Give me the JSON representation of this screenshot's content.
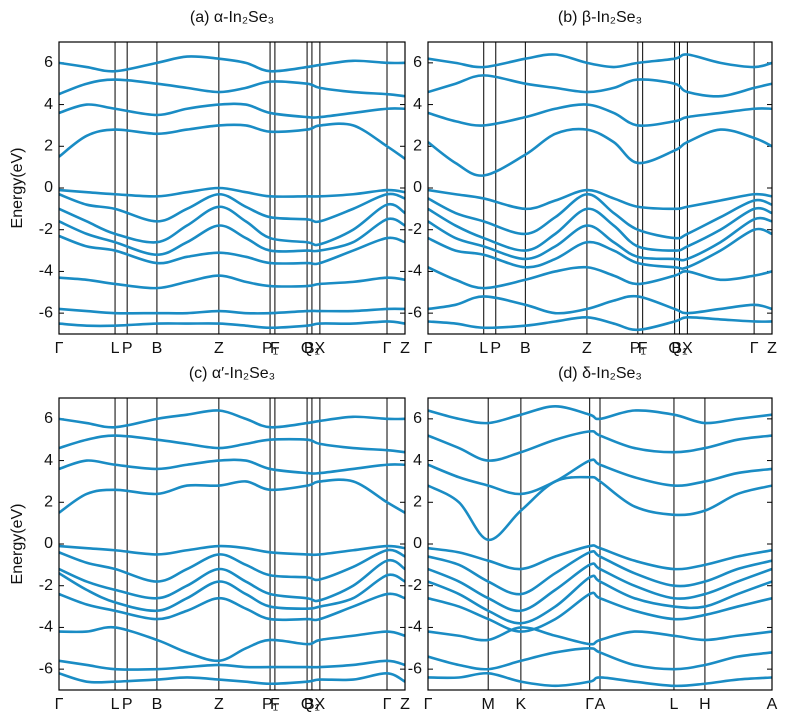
{
  "chart_data": [
    {
      "type": "line",
      "title": "(a) α-In₂Se₃",
      "ylabel": "Energy(eV)",
      "color": "#1a8cc4",
      "xgrid": true,
      "xlim": [
        0,
        1
      ],
      "ylim": [
        -7,
        7
      ],
      "yticks": [
        -6,
        -4,
        -2,
        0,
        2,
        4,
        6
      ],
      "xticks": [
        {
          "value": 0,
          "label": "Γ"
        },
        {
          "value": 0.162,
          "label": "L"
        },
        {
          "value": 0.197,
          "label": "P"
        },
        {
          "value": 0.283,
          "label": "B"
        },
        {
          "value": 0.462,
          "label": "Z"
        },
        {
          "value": 0.61,
          "label": "P₁"
        },
        {
          "value": 0.624,
          "label": "F"
        },
        {
          "value": 0.717,
          "label": "Q"
        },
        {
          "value": 0.731,
          "label": "B₁"
        },
        {
          "value": 0.754,
          "label": "X"
        },
        {
          "value": 0.948,
          "label": "Γ"
        },
        {
          "value": 1,
          "label": "Z"
        }
      ],
      "x": [
        0,
        0.08,
        0.162,
        0.283,
        0.37,
        0.462,
        0.54,
        0.61,
        0.717,
        0.754,
        0.85,
        0.948,
        1
      ],
      "series": [
        {
          "values": [
            -0.1,
            -0.2,
            -0.3,
            -0.4,
            -0.2,
            0,
            -0.2,
            -0.4,
            -0.4,
            -0.4,
            -0.3,
            -0.1,
            -0.2
          ]
        },
        {
          "values": [
            -0.3,
            -0.8,
            -1.0,
            -1.6,
            -1.0,
            -0.3,
            -0.9,
            -1.4,
            -1.5,
            -1.6,
            -1.0,
            -0.3,
            -0.5
          ]
        },
        {
          "values": [
            -1.0,
            -1.6,
            -2.2,
            -2.6,
            -1.8,
            -0.9,
            -1.6,
            -2.4,
            -2.6,
            -2.7,
            -2.0,
            -0.8,
            -1.2
          ]
        },
        {
          "values": [
            -1.6,
            -2.2,
            -2.6,
            -3.2,
            -2.6,
            -1.8,
            -2.4,
            -3.0,
            -3.0,
            -3.0,
            -2.6,
            -1.5,
            -1.8
          ]
        },
        {
          "values": [
            -2.3,
            -2.8,
            -3.0,
            -3.6,
            -3.3,
            -3.1,
            -3.3,
            -3.6,
            -3.6,
            -3.6,
            -3.0,
            -2.4,
            -2.6
          ]
        },
        {
          "values": [
            -4.3,
            -4.4,
            -4.6,
            -4.8,
            -4.5,
            -4.2,
            -4.5,
            -4.7,
            -4.7,
            -4.6,
            -4.5,
            -4.3,
            -4.4
          ]
        },
        {
          "values": [
            -5.8,
            -5.9,
            -6.0,
            -6.0,
            -6.0,
            -5.9,
            -6.0,
            -6.0,
            -5.9,
            -5.9,
            -5.9,
            -5.8,
            -5.8
          ]
        },
        {
          "values": [
            -6.5,
            -6.6,
            -6.6,
            -6.5,
            -6.5,
            -6.5,
            -6.6,
            -6.7,
            -6.6,
            -6.5,
            -6.5,
            -6.4,
            -6.5
          ]
        },
        {
          "values": [
            1.5,
            2.5,
            2.8,
            2.6,
            2.8,
            3.0,
            3.0,
            2.7,
            2.8,
            3.0,
            3.0,
            2.0,
            1.4
          ]
        },
        {
          "values": [
            3.6,
            4.0,
            3.8,
            3.5,
            3.8,
            4.0,
            4.0,
            3.6,
            3.4,
            3.4,
            3.6,
            3.8,
            3.8
          ]
        },
        {
          "values": [
            4.5,
            5.0,
            5.2,
            5.0,
            4.8,
            4.6,
            4.8,
            5.1,
            5.0,
            4.8,
            4.6,
            4.5,
            4.4
          ]
        },
        {
          "values": [
            6.0,
            5.8,
            5.6,
            6.0,
            6.3,
            6.2,
            6.0,
            5.6,
            5.8,
            5.9,
            6.1,
            6.0,
            6.0
          ]
        }
      ]
    },
    {
      "type": "line",
      "title": "(b) β-In₂Se₃",
      "color": "#1a8cc4",
      "xgrid": true,
      "xlim": [
        0,
        1
      ],
      "ylim": [
        -7,
        7
      ],
      "yticks": [
        -6,
        -4,
        -2,
        0,
        2,
        4,
        6
      ],
      "xticks": [
        {
          "value": 0,
          "label": "Γ"
        },
        {
          "value": 0.162,
          "label": "L"
        },
        {
          "value": 0.197,
          "label": "P"
        },
        {
          "value": 0.283,
          "label": "B"
        },
        {
          "value": 0.462,
          "label": "Z"
        },
        {
          "value": 0.61,
          "label": "P₁"
        },
        {
          "value": 0.624,
          "label": "F"
        },
        {
          "value": 0.717,
          "label": "Q"
        },
        {
          "value": 0.731,
          "label": "B₁"
        },
        {
          "value": 0.754,
          "label": "X"
        },
        {
          "value": 0.948,
          "label": "Γ"
        },
        {
          "value": 1,
          "label": "Z"
        }
      ],
      "x": [
        0,
        0.08,
        0.162,
        0.283,
        0.37,
        0.462,
        0.54,
        0.61,
        0.717,
        0.754,
        0.85,
        0.948,
        1
      ],
      "series": [
        {
          "values": [
            -0.1,
            -0.3,
            -0.5,
            -1.0,
            -0.6,
            -0.1,
            -0.5,
            -0.9,
            -1.0,
            -0.9,
            -0.6,
            -0.3,
            -0.4
          ]
        },
        {
          "values": [
            -0.5,
            -1.2,
            -1.6,
            -2.2,
            -1.4,
            -0.3,
            -1.2,
            -2.0,
            -2.4,
            -2.2,
            -1.4,
            -0.6,
            -0.8
          ]
        },
        {
          "values": [
            -1.0,
            -1.8,
            -2.4,
            -3.0,
            -2.2,
            -1.0,
            -1.8,
            -2.8,
            -3.0,
            -2.8,
            -2.0,
            -1.0,
            -1.2
          ]
        },
        {
          "values": [
            -1.6,
            -2.4,
            -2.8,
            -3.4,
            -2.8,
            -1.8,
            -2.6,
            -3.3,
            -3.4,
            -3.4,
            -2.6,
            -1.5,
            -1.6
          ]
        },
        {
          "values": [
            -2.4,
            -3.0,
            -3.2,
            -3.8,
            -3.4,
            -2.6,
            -3.0,
            -3.6,
            -3.8,
            -3.8,
            -3.0,
            -2.0,
            -2.2
          ]
        },
        {
          "values": [
            -3.8,
            -4.4,
            -4.8,
            -4.4,
            -4.0,
            -3.8,
            -4.2,
            -4.6,
            -4.2,
            -4.0,
            -4.4,
            -4.2,
            -4.0
          ]
        },
        {
          "values": [
            -5.8,
            -5.6,
            -5.2,
            -5.6,
            -6.0,
            -5.8,
            -5.4,
            -5.2,
            -5.8,
            -6.0,
            -5.8,
            -5.6,
            -5.8
          ]
        },
        {
          "values": [
            -6.4,
            -6.5,
            -6.7,
            -6.6,
            -6.4,
            -6.2,
            -6.5,
            -6.8,
            -6.4,
            -6.2,
            -6.3,
            -6.4,
            -6.4
          ]
        },
        {
          "values": [
            2.2,
            1.2,
            0.6,
            1.6,
            2.6,
            2.8,
            2.2,
            1.2,
            1.8,
            2.2,
            2.8,
            2.4,
            2.0
          ]
        },
        {
          "values": [
            3.6,
            3.2,
            3.0,
            3.4,
            3.8,
            4.0,
            3.6,
            3.0,
            3.2,
            3.4,
            3.6,
            3.8,
            3.8
          ]
        },
        {
          "values": [
            4.6,
            5.0,
            5.4,
            5.0,
            4.8,
            4.6,
            4.8,
            5.2,
            5.0,
            4.6,
            4.4,
            4.8,
            5.0
          ]
        },
        {
          "values": [
            6.2,
            6.0,
            5.8,
            6.2,
            6.4,
            6.0,
            5.8,
            6.0,
            6.2,
            6.4,
            6.0,
            5.8,
            6.0
          ]
        }
      ]
    },
    {
      "type": "line",
      "title": "(c) α′-In₂Se₃",
      "ylabel": "Energy(eV)",
      "color": "#1a8cc4",
      "xgrid": true,
      "xlim": [
        0,
        1
      ],
      "ylim": [
        -7,
        7
      ],
      "yticks": [
        -6,
        -4,
        -2,
        0,
        2,
        4,
        6
      ],
      "xticks": [
        {
          "value": 0,
          "label": "Γ"
        },
        {
          "value": 0.162,
          "label": "L"
        },
        {
          "value": 0.197,
          "label": "P"
        },
        {
          "value": 0.283,
          "label": "B"
        },
        {
          "value": 0.462,
          "label": "Z"
        },
        {
          "value": 0.61,
          "label": "P₁"
        },
        {
          "value": 0.624,
          "label": "F"
        },
        {
          "value": 0.717,
          "label": "Q"
        },
        {
          "value": 0.731,
          "label": "B₁"
        },
        {
          "value": 0.754,
          "label": "X"
        },
        {
          "value": 0.948,
          "label": "Γ"
        },
        {
          "value": 1,
          "label": "Z"
        }
      ],
      "x": [
        0,
        0.08,
        0.162,
        0.283,
        0.37,
        0.462,
        0.54,
        0.61,
        0.717,
        0.754,
        0.85,
        0.948,
        1
      ],
      "series": [
        {
          "values": [
            -0.1,
            -0.2,
            -0.3,
            -0.5,
            -0.3,
            -0.1,
            -0.2,
            -0.4,
            -0.5,
            -0.5,
            -0.3,
            -0.1,
            -0.2
          ]
        },
        {
          "values": [
            -0.4,
            -0.9,
            -1.2,
            -1.8,
            -1.2,
            -0.5,
            -1.0,
            -1.5,
            -1.6,
            -1.7,
            -1.1,
            -0.3,
            -0.6
          ]
        },
        {
          "values": [
            -1.2,
            -1.8,
            -2.2,
            -2.6,
            -2.0,
            -1.2,
            -1.8,
            -2.4,
            -2.6,
            -2.7,
            -2.0,
            -0.8,
            -1.2
          ]
        },
        {
          "values": [
            -1.4,
            -2.2,
            -2.8,
            -3.2,
            -2.6,
            -1.8,
            -2.4,
            -3.0,
            -3.1,
            -3.0,
            -2.6,
            -1.5,
            -1.8
          ]
        },
        {
          "values": [
            -2.4,
            -2.9,
            -3.2,
            -3.6,
            -3.2,
            -2.6,
            -3.1,
            -3.6,
            -3.6,
            -3.6,
            -3.0,
            -2.4,
            -2.6
          ]
        },
        {
          "values": [
            -4.2,
            -4.2,
            -4.0,
            -4.6,
            -5.2,
            -5.6,
            -5.0,
            -4.6,
            -4.8,
            -4.6,
            -4.4,
            -4.2,
            -4.4
          ]
        },
        {
          "values": [
            -5.6,
            -5.8,
            -6.0,
            -6.0,
            -5.9,
            -5.8,
            -5.9,
            -5.9,
            -5.9,
            -5.9,
            -5.8,
            -5.6,
            -5.8
          ]
        },
        {
          "values": [
            -6.2,
            -6.6,
            -6.6,
            -6.5,
            -6.4,
            -6.5,
            -6.6,
            -6.7,
            -6.6,
            -6.5,
            -6.5,
            -6.2,
            -6.6
          ]
        },
        {
          "values": [
            1.5,
            2.4,
            2.6,
            2.4,
            2.8,
            2.8,
            3.0,
            2.6,
            2.8,
            3.0,
            3.0,
            2.0,
            1.5
          ]
        },
        {
          "values": [
            3.6,
            4.0,
            3.8,
            3.6,
            3.8,
            4.0,
            4.0,
            3.6,
            3.4,
            3.4,
            3.6,
            3.8,
            3.8
          ]
        },
        {
          "values": [
            4.6,
            5.0,
            5.2,
            5.0,
            4.8,
            4.6,
            4.8,
            5.0,
            5.0,
            4.8,
            4.6,
            4.5,
            4.4
          ]
        },
        {
          "values": [
            6.0,
            5.8,
            5.6,
            6.0,
            6.2,
            6.4,
            6.0,
            5.6,
            5.8,
            5.9,
            6.1,
            6.0,
            6.0
          ]
        }
      ]
    },
    {
      "type": "line",
      "title": "(d) δ-In₂Se₃",
      "color": "#1a8cc4",
      "xgrid": true,
      "xlim": [
        0,
        1
      ],
      "ylim": [
        -7,
        7
      ],
      "yticks": [
        -6,
        -4,
        -2,
        0,
        2,
        4,
        6
      ],
      "xticks": [
        {
          "value": 0,
          "label": "Γ"
        },
        {
          "value": 0.175,
          "label": "M"
        },
        {
          "value": 0.27,
          "label": "K"
        },
        {
          "value": 0.47,
          "label": "Γ"
        },
        {
          "value": 0.5,
          "label": "A"
        },
        {
          "value": 0.715,
          "label": "L"
        },
        {
          "value": 0.805,
          "label": "H"
        },
        {
          "value": 1,
          "label": "A"
        }
      ],
      "x": [
        0,
        0.09,
        0.175,
        0.27,
        0.37,
        0.47,
        0.5,
        0.6,
        0.715,
        0.805,
        0.9,
        1
      ],
      "series": [
        {
          "values": [
            -0.2,
            -0.4,
            -0.8,
            -1.2,
            -0.6,
            -0.1,
            -0.2,
            -0.8,
            -1.2,
            -1.0,
            -0.6,
            -0.3
          ]
        },
        {
          "values": [
            -0.6,
            -1.0,
            -1.8,
            -2.4,
            -1.4,
            -0.4,
            -0.6,
            -1.4,
            -2.0,
            -1.8,
            -1.2,
            -0.8
          ]
        },
        {
          "values": [
            -1.2,
            -1.8,
            -2.6,
            -3.2,
            -2.2,
            -1.0,
            -1.2,
            -2.0,
            -2.6,
            -2.4,
            -1.8,
            -1.2
          ]
        },
        {
          "values": [
            -1.8,
            -2.4,
            -3.2,
            -3.8,
            -3.0,
            -1.6,
            -1.8,
            -2.6,
            -3.0,
            -3.0,
            -2.4,
            -1.8
          ]
        },
        {
          "values": [
            -2.6,
            -3.0,
            -3.6,
            -4.2,
            -3.6,
            -2.4,
            -2.6,
            -3.2,
            -3.6,
            -3.4,
            -3.0,
            -2.6
          ]
        },
        {
          "values": [
            -4.2,
            -4.4,
            -4.6,
            -4.0,
            -4.4,
            -4.8,
            -4.6,
            -4.2,
            -4.4,
            -4.6,
            -4.4,
            -4.2
          ]
        },
        {
          "values": [
            -5.4,
            -5.8,
            -6.0,
            -5.6,
            -5.2,
            -5.0,
            -5.2,
            -5.8,
            -6.0,
            -5.8,
            -5.4,
            -5.2
          ]
        },
        {
          "values": [
            -6.4,
            -6.4,
            -6.2,
            -6.6,
            -6.8,
            -6.6,
            -6.4,
            -6.6,
            -6.8,
            -6.7,
            -6.5,
            -6.4
          ]
        },
        {
          "values": [
            2.8,
            2.0,
            0.2,
            1.6,
            3.0,
            3.2,
            3.0,
            1.8,
            1.4,
            1.6,
            2.4,
            2.8
          ]
        },
        {
          "values": [
            3.8,
            3.2,
            2.8,
            2.4,
            3.0,
            4.0,
            3.8,
            3.2,
            2.8,
            3.0,
            3.4,
            3.6
          ]
        },
        {
          "values": [
            5.2,
            4.6,
            4.0,
            4.4,
            5.0,
            5.4,
            5.2,
            4.6,
            4.4,
            4.6,
            5.0,
            5.2
          ]
        },
        {
          "values": [
            6.4,
            6.0,
            5.8,
            6.2,
            6.6,
            6.2,
            6.0,
            6.4,
            6.2,
            5.8,
            6.0,
            6.2
          ]
        }
      ]
    }
  ]
}
